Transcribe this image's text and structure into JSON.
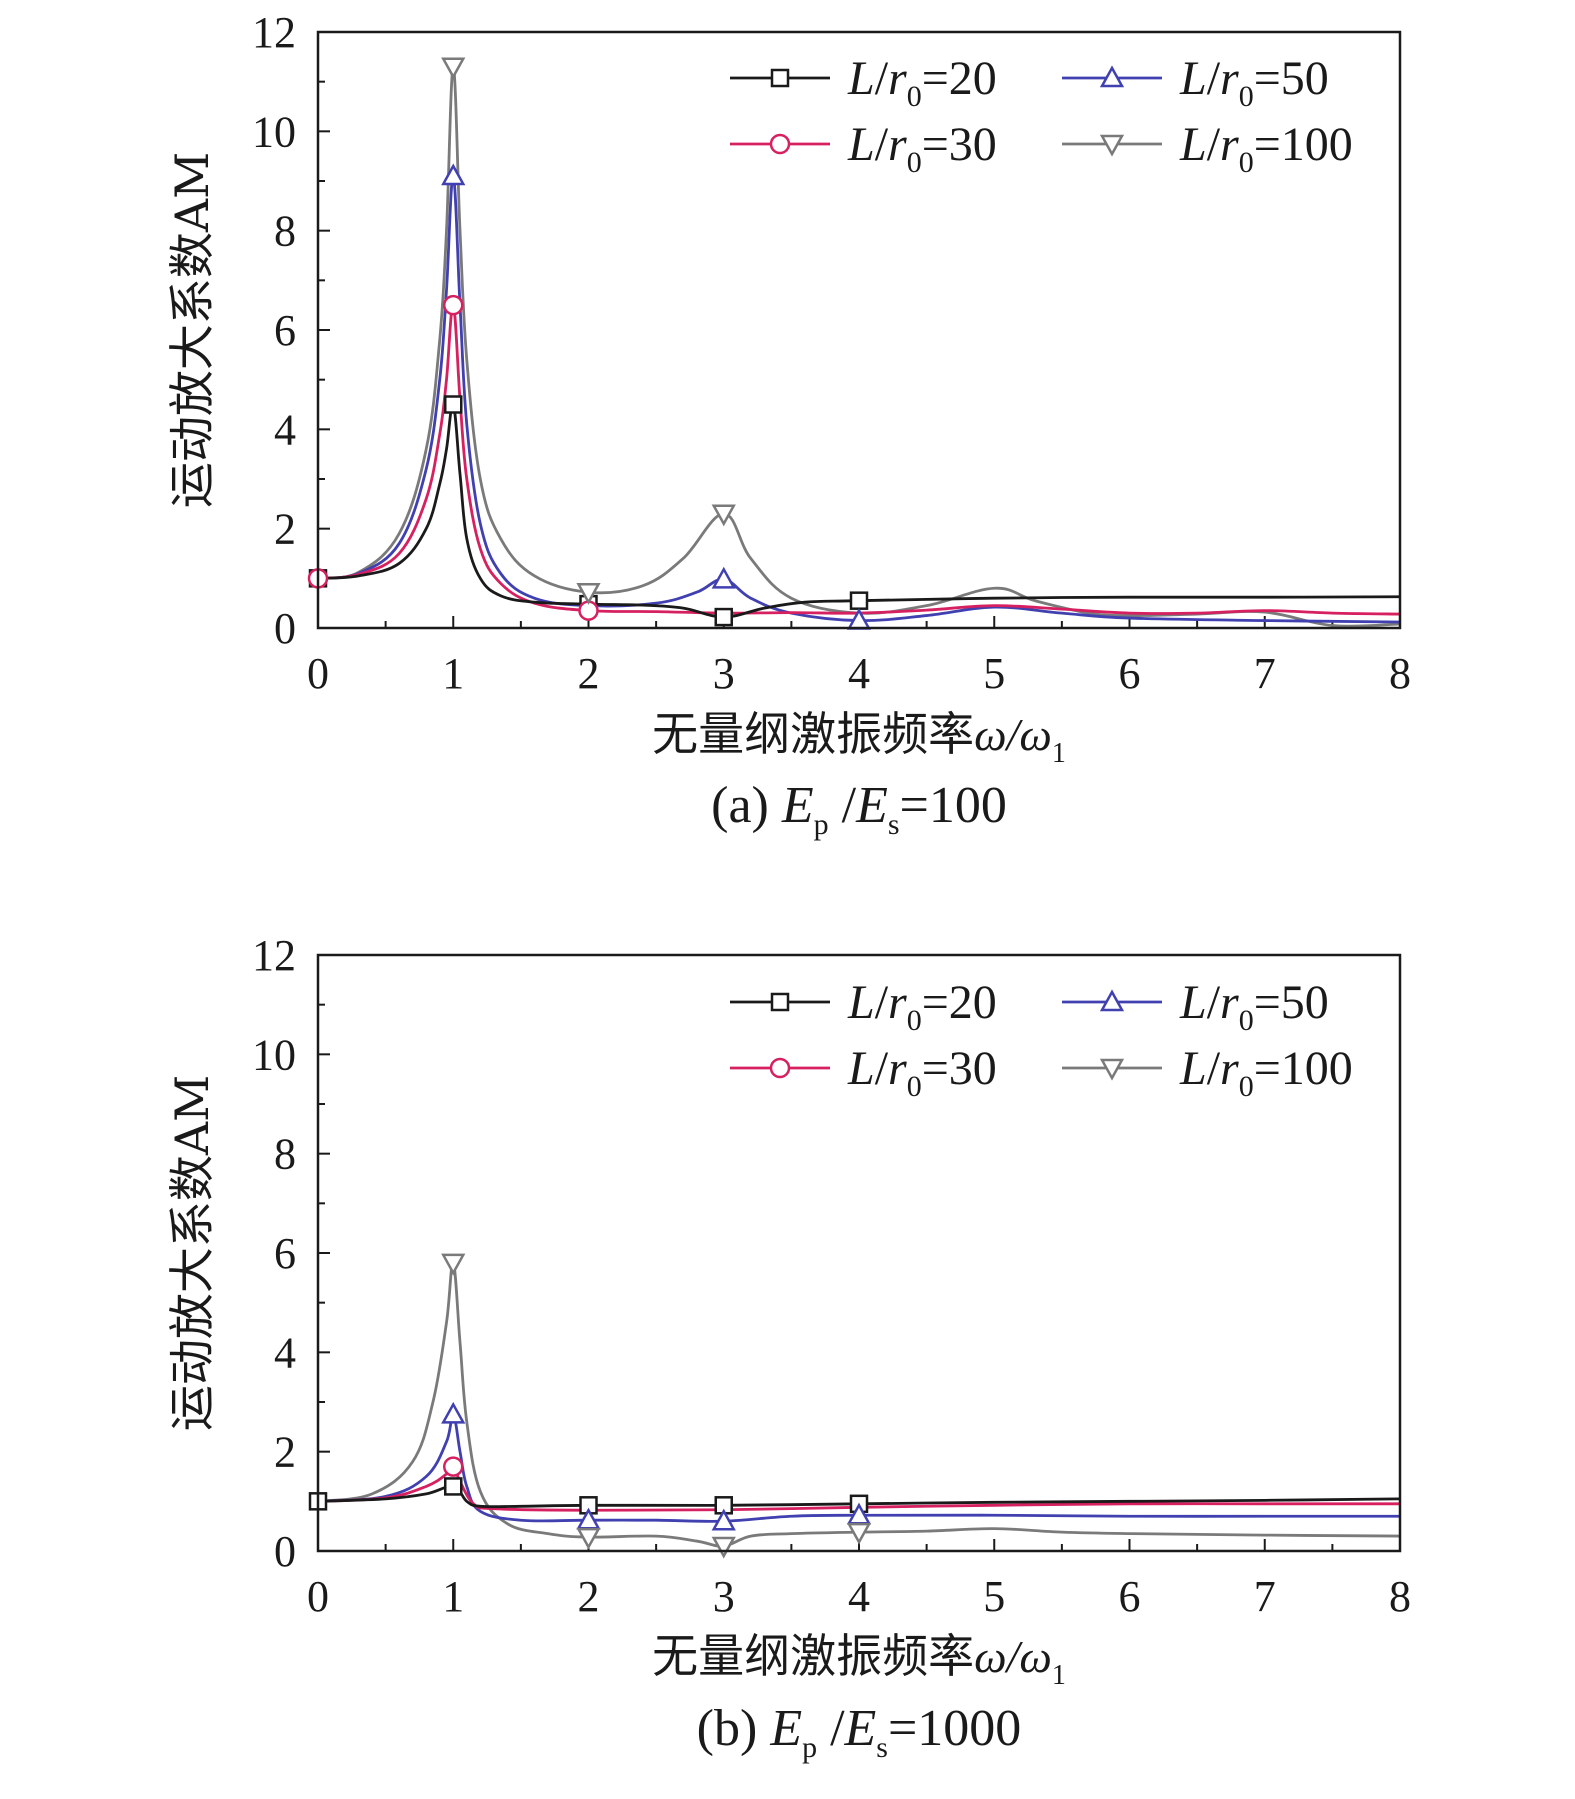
{
  "chart_data": [
    {
      "type": "line",
      "caption": "(a) Ep /Es=100",
      "caption_parts": {
        "prefix": "(a) ",
        "e1": "E",
        "sub1": "p",
        "sep": " /",
        "e2": "E",
        "sub2": "s",
        "suffix": "=100"
      },
      "xlabel": "无量纲激振频率ω/ω1",
      "xlabel_parts": {
        "text": "无量纲激振频率",
        "var": "ω/ω",
        "sub": "1"
      },
      "ylabel": "运动放大系数AM",
      "xlim": [
        0,
        8
      ],
      "ylim": [
        0,
        12
      ],
      "x_ticks": [
        "0",
        "1",
        "2",
        "3",
        "4",
        "5",
        "6",
        "7",
        "8"
      ],
      "y_ticks": [
        "0",
        "2",
        "4",
        "6",
        "8",
        "10",
        "12"
      ],
      "legend_position": "top-right",
      "series": [
        {
          "name": "L/r0=20",
          "legend": {
            "a": "L",
            "b": "/",
            "c": "r",
            "sub": "0",
            "d": "=20"
          },
          "color": "#1a1a1a",
          "marker": "square",
          "points": [
            [
              0,
              1.0
            ],
            [
              0.3,
              1.05
            ],
            [
              0.6,
              1.3
            ],
            [
              0.8,
              2.0
            ],
            [
              0.9,
              2.9
            ],
            [
              0.95,
              3.6
            ],
            [
              1.0,
              4.5
            ],
            [
              1.05,
              3.1
            ],
            [
              1.1,
              1.8
            ],
            [
              1.2,
              1.0
            ],
            [
              1.35,
              0.65
            ],
            [
              1.6,
              0.52
            ],
            [
              2.0,
              0.48
            ],
            [
              2.4,
              0.46
            ],
            [
              2.7,
              0.4
            ],
            [
              3.0,
              0.22
            ],
            [
              3.3,
              0.4
            ],
            [
              3.6,
              0.52
            ],
            [
              4.0,
              0.55
            ],
            [
              5.0,
              0.6
            ],
            [
              6.0,
              0.62
            ],
            [
              7.0,
              0.62
            ],
            [
              8.0,
              0.63
            ]
          ]
        },
        {
          "name": "L/r0=30",
          "legend": {
            "a": "L",
            "b": "/",
            "c": "r",
            "sub": "0",
            "d": "=30"
          },
          "color": "#d62060",
          "marker": "circle",
          "points": [
            [
              0,
              1.0
            ],
            [
              0.3,
              1.08
            ],
            [
              0.6,
              1.5
            ],
            [
              0.8,
              2.6
            ],
            [
              0.9,
              3.9
            ],
            [
              0.95,
              5.0
            ],
            [
              1.0,
              6.5
            ],
            [
              1.05,
              4.6
            ],
            [
              1.1,
              3.0
            ],
            [
              1.2,
              1.6
            ],
            [
              1.35,
              0.9
            ],
            [
              1.6,
              0.5
            ],
            [
              2.0,
              0.35
            ],
            [
              2.5,
              0.33
            ],
            [
              3.0,
              0.3
            ],
            [
              3.5,
              0.31
            ],
            [
              4.0,
              0.3
            ],
            [
              4.5,
              0.36
            ],
            [
              5.0,
              0.45
            ],
            [
              5.5,
              0.38
            ],
            [
              6.0,
              0.3
            ],
            [
              6.5,
              0.3
            ],
            [
              7.0,
              0.35
            ],
            [
              7.5,
              0.3
            ],
            [
              8.0,
              0.28
            ]
          ]
        },
        {
          "name": "L/r0=50",
          "legend": {
            "a": "L",
            "b": "/",
            "c": "r",
            "sub": "0",
            "d": "=50"
          },
          "color": "#4040b0",
          "marker": "triangle-up",
          "points": [
            [
              0,
              1.0
            ],
            [
              0.3,
              1.1
            ],
            [
              0.6,
              1.7
            ],
            [
              0.8,
              3.2
            ],
            [
              0.9,
              5.0
            ],
            [
              0.95,
              6.8
            ],
            [
              1.0,
              9.1
            ],
            [
              1.05,
              6.5
            ],
            [
              1.1,
              4.1
            ],
            [
              1.2,
              2.1
            ],
            [
              1.35,
              1.1
            ],
            [
              1.6,
              0.6
            ],
            [
              2.0,
              0.45
            ],
            [
              2.5,
              0.5
            ],
            [
              2.8,
              0.72
            ],
            [
              3.0,
              0.98
            ],
            [
              3.2,
              0.6
            ],
            [
              3.5,
              0.3
            ],
            [
              4.0,
              0.15
            ],
            [
              4.5,
              0.25
            ],
            [
              5.0,
              0.42
            ],
            [
              5.5,
              0.3
            ],
            [
              6.0,
              0.2
            ],
            [
              7.0,
              0.15
            ],
            [
              8.0,
              0.12
            ]
          ]
        },
        {
          "name": "L/r0=100",
          "legend": {
            "a": "L",
            "b": "/",
            "c": "r",
            "sub": "0",
            "d": "=100"
          },
          "color": "#7a7a7a",
          "marker": "triangle-down",
          "points": [
            [
              0,
              1.0
            ],
            [
              0.3,
              1.12
            ],
            [
              0.6,
              1.9
            ],
            [
              0.8,
              3.6
            ],
            [
              0.9,
              5.8
            ],
            [
              0.95,
              8.0
            ],
            [
              1.0,
              11.3
            ],
            [
              1.05,
              8.0
            ],
            [
              1.1,
              5.4
            ],
            [
              1.2,
              3.0
            ],
            [
              1.35,
              1.8
            ],
            [
              1.6,
              1.05
            ],
            [
              2.0,
              0.72
            ],
            [
              2.4,
              0.85
            ],
            [
              2.7,
              1.4
            ],
            [
              3.0,
              2.3
            ],
            [
              3.2,
              1.4
            ],
            [
              3.5,
              0.6
            ],
            [
              4.0,
              0.3
            ],
            [
              4.5,
              0.45
            ],
            [
              5.0,
              0.8
            ],
            [
              5.3,
              0.55
            ],
            [
              5.7,
              0.3
            ],
            [
              6.0,
              0.25
            ],
            [
              6.5,
              0.28
            ],
            [
              7.0,
              0.32
            ],
            [
              7.5,
              0.05
            ],
            [
              8.0,
              0.08
            ]
          ]
        }
      ]
    },
    {
      "type": "line",
      "caption": "(b) Ep /Es=1000",
      "caption_parts": {
        "prefix": "(b) ",
        "e1": "E",
        "sub1": "p",
        "sep": " /",
        "e2": "E",
        "sub2": "s",
        "suffix": "=1000"
      },
      "xlabel": "无量纲激振频率ω/ω1",
      "xlabel_parts": {
        "text": "无量纲激振频率",
        "var": "ω/ω",
        "sub": "1"
      },
      "ylabel": "运动放大系数AM",
      "xlim": [
        0,
        8
      ],
      "ylim": [
        0,
        12
      ],
      "x_ticks": [
        "0",
        "1",
        "2",
        "3",
        "4",
        "5",
        "6",
        "7",
        "8"
      ],
      "y_ticks": [
        "0",
        "2",
        "4",
        "6",
        "8",
        "10",
        "12"
      ],
      "legend_position": "top-right",
      "series": [
        {
          "name": "L/r0=20",
          "legend": {
            "a": "L",
            "b": "/",
            "c": "r",
            "sub": "0",
            "d": "=20"
          },
          "color": "#1a1a1a",
          "marker": "square",
          "points": [
            [
              0,
              1.0
            ],
            [
              0.5,
              1.05
            ],
            [
              0.8,
              1.15
            ],
            [
              1.0,
              1.3
            ],
            [
              1.1,
              1.0
            ],
            [
              1.2,
              0.9
            ],
            [
              1.5,
              0.9
            ],
            [
              2.0,
              0.92
            ],
            [
              3.0,
              0.92
            ],
            [
              4.0,
              0.95
            ],
            [
              5.0,
              0.98
            ],
            [
              6.0,
              1.0
            ],
            [
              7.0,
              1.02
            ],
            [
              8.0,
              1.05
            ]
          ]
        },
        {
          "name": "L/r0=30",
          "legend": {
            "a": "L",
            "b": "/",
            "c": "r",
            "sub": "0",
            "d": "=30"
          },
          "color": "#d62060",
          "marker": "circle",
          "points": [
            [
              0,
              1.0
            ],
            [
              0.5,
              1.07
            ],
            [
              0.8,
              1.3
            ],
            [
              0.95,
              1.55
            ],
            [
              1.0,
              1.7
            ],
            [
              1.05,
              1.4
            ],
            [
              1.15,
              0.95
            ],
            [
              1.3,
              0.85
            ],
            [
              2.0,
              0.82
            ],
            [
              3.0,
              0.83
            ],
            [
              4.0,
              0.88
            ],
            [
              5.0,
              0.92
            ],
            [
              6.0,
              0.95
            ],
            [
              7.0,
              0.95
            ],
            [
              8.0,
              0.95
            ]
          ]
        },
        {
          "name": "L/r0=50",
          "legend": {
            "a": "L",
            "b": "/",
            "c": "r",
            "sub": "0",
            "d": "=50"
          },
          "color": "#4040b0",
          "marker": "triangle-up",
          "points": [
            [
              0,
              1.0
            ],
            [
              0.5,
              1.1
            ],
            [
              0.8,
              1.5
            ],
            [
              0.95,
              2.2
            ],
            [
              1.0,
              2.75
            ],
            [
              1.05,
              2.0
            ],
            [
              1.1,
              1.3
            ],
            [
              1.2,
              0.8
            ],
            [
              1.5,
              0.62
            ],
            [
              2.0,
              0.62
            ],
            [
              2.5,
              0.62
            ],
            [
              3.0,
              0.6
            ],
            [
              3.5,
              0.7
            ],
            [
              4.0,
              0.72
            ],
            [
              5.0,
              0.72
            ],
            [
              6.0,
              0.7
            ],
            [
              7.0,
              0.7
            ],
            [
              8.0,
              0.7
            ]
          ]
        },
        {
          "name": "L/r0=100",
          "legend": {
            "a": "L",
            "b": "/",
            "c": "r",
            "sub": "0",
            "d": "=100"
          },
          "color": "#7a7a7a",
          "marker": "triangle-down",
          "points": [
            [
              0,
              1.0
            ],
            [
              0.4,
              1.15
            ],
            [
              0.7,
              1.8
            ],
            [
              0.85,
              3.0
            ],
            [
              0.95,
              4.6
            ],
            [
              1.0,
              5.8
            ],
            [
              1.05,
              4.2
            ],
            [
              1.1,
              2.6
            ],
            [
              1.2,
              1.2
            ],
            [
              1.4,
              0.55
            ],
            [
              1.7,
              0.35
            ],
            [
              2.0,
              0.28
            ],
            [
              2.5,
              0.3
            ],
            [
              2.8,
              0.2
            ],
            [
              3.0,
              0.1
            ],
            [
              3.2,
              0.3
            ],
            [
              3.5,
              0.35
            ],
            [
              4.0,
              0.38
            ],
            [
              4.5,
              0.4
            ],
            [
              5.0,
              0.45
            ],
            [
              5.5,
              0.38
            ],
            [
              6.0,
              0.35
            ],
            [
              7.0,
              0.32
            ],
            [
              8.0,
              0.3
            ]
          ]
        }
      ]
    }
  ]
}
